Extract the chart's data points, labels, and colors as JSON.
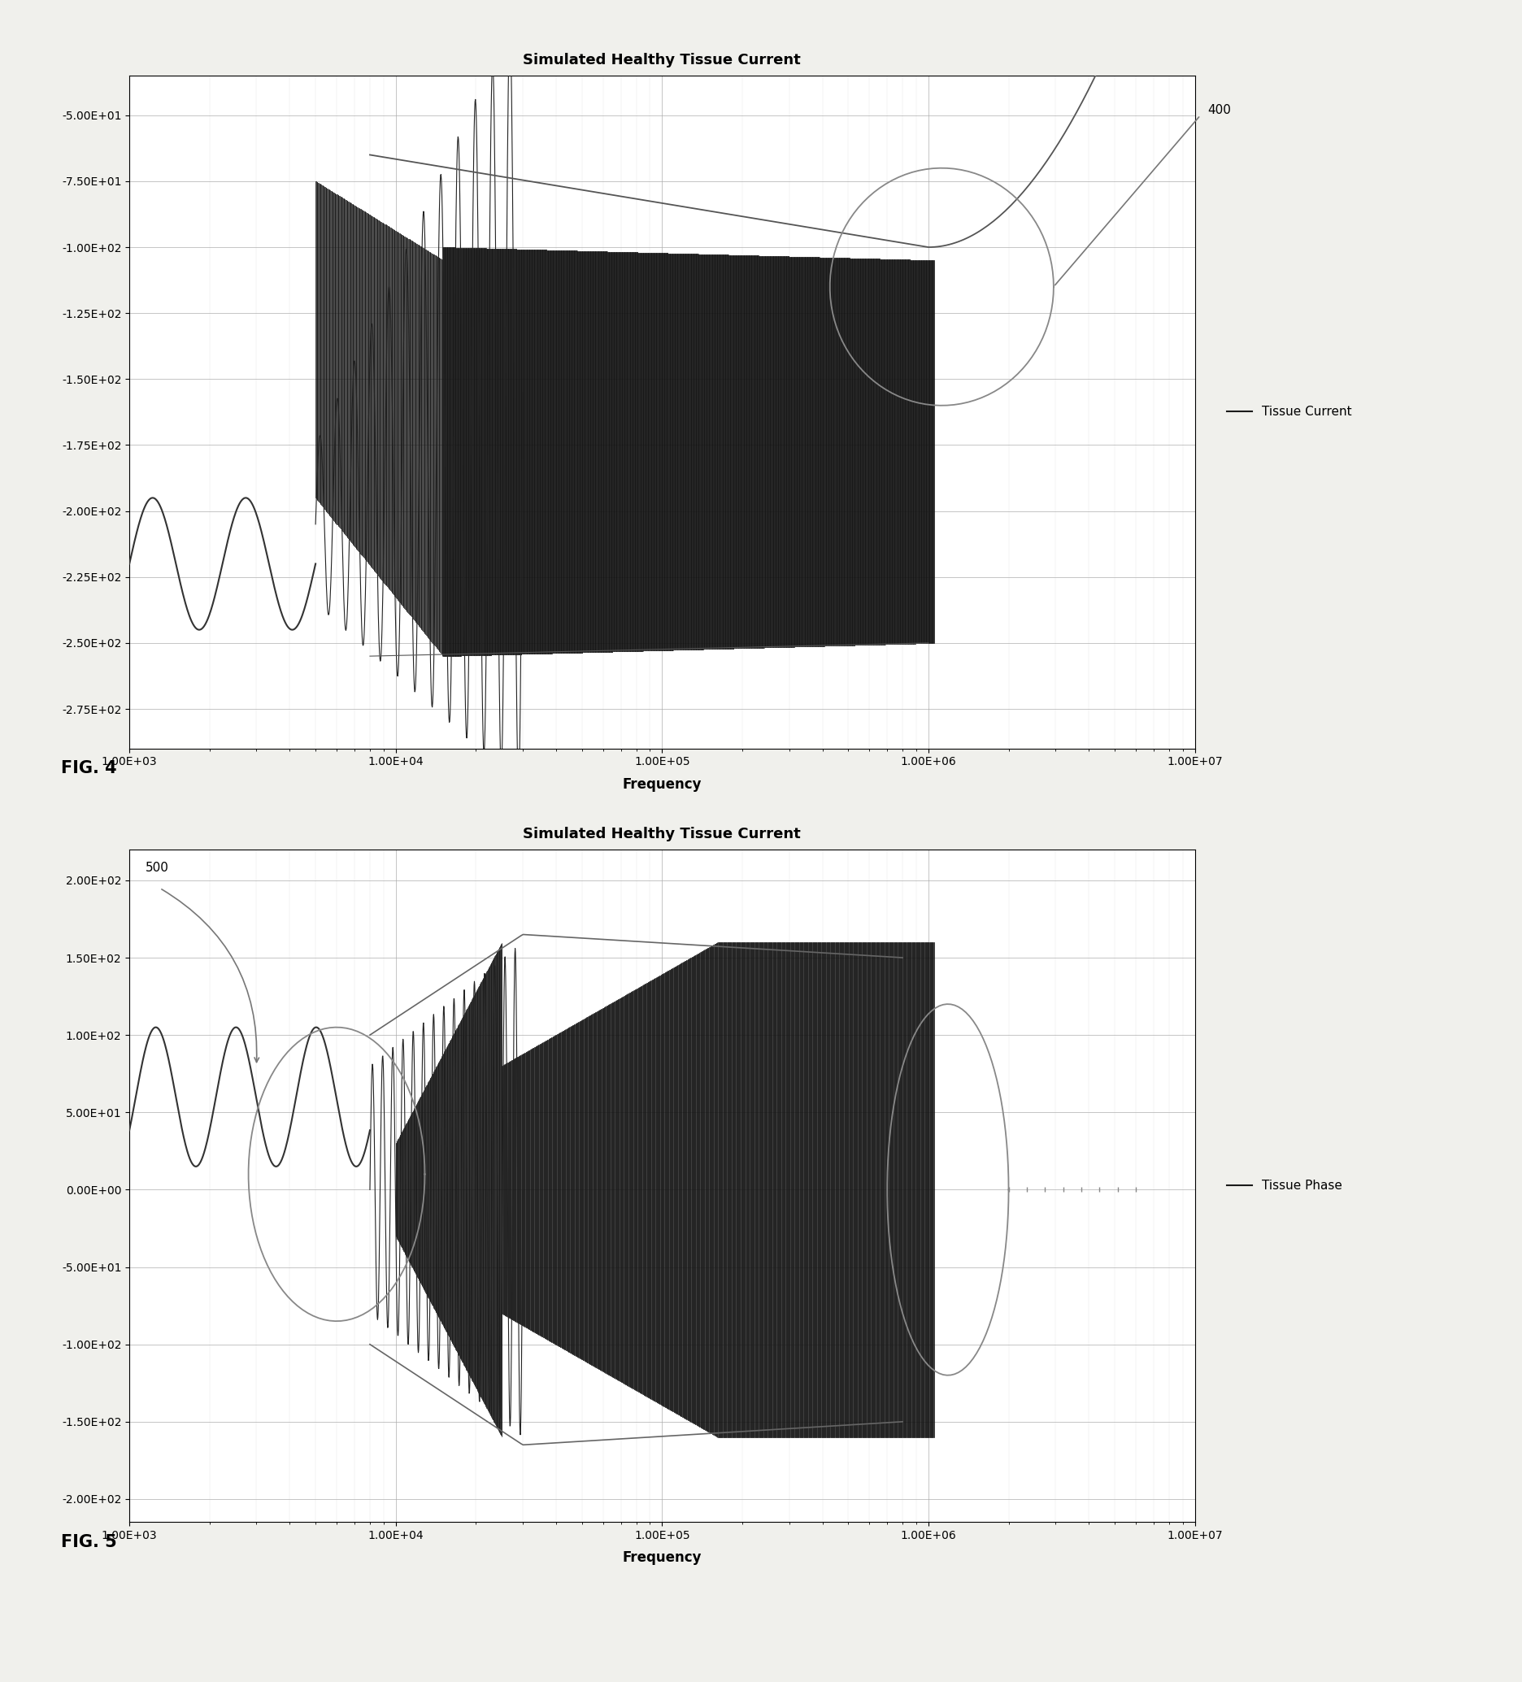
{
  "fig4": {
    "title": "Simulated Healthy Tissue Current",
    "xlabel": "Frequency",
    "legend_label": "Tissue Current",
    "annotation_label": "400",
    "xtick_labels": [
      "1.00E+03",
      "1.00E+04",
      "1.00E+05",
      "1.00E+06",
      "1.00E+07"
    ],
    "yticks": [
      -275,
      -250,
      -225,
      -200,
      -175,
      -150,
      -125,
      -100,
      -75,
      -50
    ],
    "ytick_labels": [
      "-2.75E+02",
      "-2.50E+02",
      "-2.25E+02",
      "-2.00E+02",
      "-1.75E+02",
      "-1.50E+02",
      "-1.25E+02",
      "-1.00E+02",
      "-7.50E+01",
      "-5.00E+01"
    ],
    "ylim": [
      -290,
      -35
    ],
    "grid_color": "#aaaaaa"
  },
  "fig5": {
    "title": "Simulated Healthy Tissue Current",
    "xlabel": "Frequency",
    "legend_label": "Tissue Phase",
    "annotation_label": "500",
    "xtick_labels": [
      "1.00E+03",
      "1.00E+04",
      "1.00E+05",
      "1.00E+06",
      "1.00E+07"
    ],
    "yticks": [
      -200,
      -150,
      -100,
      -50,
      0,
      50,
      100,
      150,
      200
    ],
    "ytick_labels": [
      "-2.00E+02",
      "-1.50E+02",
      "-1.00E+02",
      "-5.00E+01",
      "0.00E+00",
      "5.00E+01",
      "1.00E+02",
      "1.50E+02",
      "2.00E+02"
    ],
    "ylim": [
      -215,
      220
    ],
    "grid_color": "#aaaaaa"
  },
  "fig_label4": "FIG. 4",
  "fig_label5": "FIG. 5",
  "page_bg": "#f0f0ec"
}
